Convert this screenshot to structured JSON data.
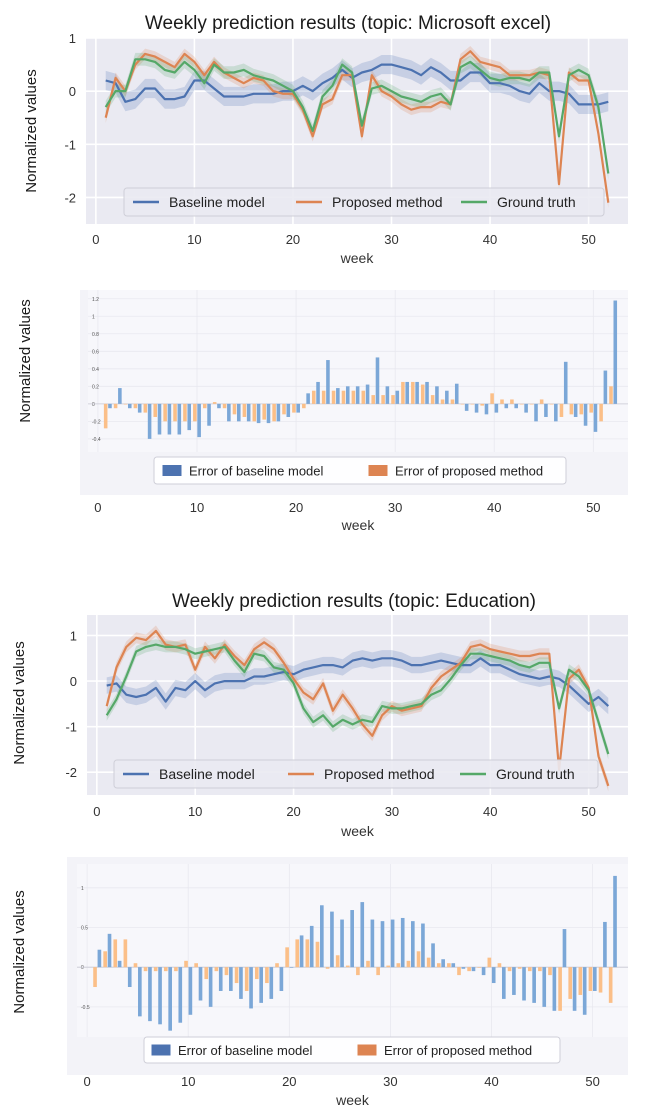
{
  "chart_data": [
    {
      "type": "line",
      "title": "Weekly prediction results (topic: Microsoft excel)",
      "xlabel": "week",
      "ylabel": "Normalized values",
      "xlim": [
        -1,
        54
      ],
      "ylim": [
        -2.5,
        1.0
      ],
      "xticks": [
        0,
        10,
        20,
        30,
        40,
        50
      ],
      "yticks": [
        1,
        0,
        -1,
        -2
      ],
      "grid": true,
      "legend": "bottom-center",
      "x": [
        1,
        2,
        3,
        4,
        5,
        6,
        7,
        8,
        9,
        10,
        11,
        12,
        13,
        14,
        15,
        16,
        17,
        18,
        19,
        20,
        21,
        22,
        23,
        24,
        25,
        26,
        27,
        28,
        29,
        30,
        31,
        32,
        33,
        34,
        35,
        36,
        37,
        38,
        39,
        40,
        41,
        42,
        43,
        44,
        45,
        46,
        47,
        48,
        49,
        50,
        51,
        52
      ],
      "series": [
        {
          "name": "Baseline model",
          "color": "#4c72b0",
          "band": 0.18,
          "values": [
            0.2,
            0.15,
            -0.2,
            -0.15,
            0.05,
            0.05,
            -0.15,
            -0.15,
            -0.1,
            0.2,
            0.2,
            0.05,
            -0.1,
            -0.1,
            -0.1,
            -0.05,
            -0.05,
            -0.05,
            0.0,
            0.0,
            0.1,
            0.0,
            0.15,
            0.25,
            0.4,
            0.25,
            0.35,
            0.4,
            0.5,
            0.5,
            0.45,
            0.4,
            0.3,
            0.45,
            0.35,
            0.2,
            0.2,
            0.35,
            0.35,
            0.15,
            0.15,
            0.1,
            0.0,
            -0.05,
            0.15,
            0.0,
            0.0,
            -0.05,
            -0.25,
            -0.25,
            -0.25,
            -0.2
          ]
        },
        {
          "name": "Proposed method",
          "color": "#dd8452",
          "band": 0.1,
          "values": [
            -0.5,
            0.25,
            0.0,
            0.5,
            0.7,
            0.65,
            0.55,
            0.45,
            0.7,
            0.55,
            0.3,
            0.55,
            0.35,
            0.25,
            0.15,
            0.25,
            0.2,
            0.0,
            -0.05,
            -0.05,
            -0.35,
            -0.85,
            -0.25,
            -0.15,
            0.3,
            0.3,
            -0.85,
            0.3,
            0.0,
            -0.1,
            -0.25,
            -0.35,
            -0.3,
            -0.3,
            -0.2,
            -0.25,
            0.6,
            0.75,
            0.55,
            0.5,
            0.45,
            0.3,
            0.3,
            0.3,
            0.35,
            0.3,
            -1.75,
            0.35,
            0.2,
            0.2,
            -0.8,
            -2.1
          ]
        },
        {
          "name": "Ground truth",
          "color": "#55a868",
          "band": 0.12,
          "values": [
            -0.3,
            0.0,
            0.0,
            0.6,
            0.6,
            0.55,
            0.4,
            0.35,
            0.55,
            0.4,
            0.15,
            0.5,
            0.35,
            0.35,
            0.4,
            0.3,
            0.25,
            0.2,
            0.1,
            0.0,
            -0.3,
            -0.75,
            -0.1,
            0.1,
            0.5,
            0.35,
            -0.65,
            0.05,
            0.1,
            0.0,
            -0.1,
            -0.15,
            -0.2,
            -0.1,
            -0.05,
            -0.25,
            0.45,
            0.55,
            0.4,
            0.25,
            0.2,
            0.25,
            0.25,
            0.2,
            0.35,
            0.35,
            -0.85,
            0.3,
            0.4,
            0.3,
            -0.3,
            -1.55
          ]
        }
      ]
    },
    {
      "type": "bar",
      "xlabel": "week",
      "ylabel": "Normalized values",
      "xlim": [
        -1,
        53.5
      ],
      "ylim": [
        -0.55,
        1.3
      ],
      "xticks": [
        0,
        10,
        20,
        30,
        40,
        50
      ],
      "yticks": [
        1.2,
        1,
        0.8,
        0.6,
        0.4,
        0.2,
        0,
        -0.2,
        -0.4
      ],
      "grid": true,
      "legend": "bottom-center",
      "x": [
        1,
        2,
        3,
        4,
        5,
        6,
        7,
        8,
        9,
        10,
        11,
        12,
        13,
        14,
        15,
        16,
        17,
        18,
        19,
        20,
        21,
        22,
        23,
        24,
        25,
        26,
        27,
        28,
        29,
        30,
        31,
        32,
        33,
        34,
        35,
        36,
        37,
        38,
        39,
        40,
        41,
        42,
        43,
        44,
        45,
        46,
        47,
        48,
        49,
        50,
        51,
        52
      ],
      "series": [
        {
          "name": "Error of baseline model",
          "color": "#4c72b0",
          "fill": "#7ba7d7",
          "values": [
            -0.05,
            0.18,
            -0.05,
            -0.1,
            -0.4,
            -0.35,
            -0.35,
            -0.35,
            -0.3,
            -0.38,
            -0.25,
            -0.05,
            -0.2,
            -0.2,
            -0.2,
            -0.22,
            -0.22,
            -0.2,
            -0.15,
            -0.1,
            0.12,
            0.25,
            0.5,
            0.18,
            0.2,
            0.2,
            0.22,
            0.53,
            0.2,
            0.15,
            0.25,
            0.25,
            0.25,
            0.2,
            0.15,
            0.23,
            -0.08,
            -0.1,
            -0.12,
            -0.1,
            -0.05,
            -0.05,
            -0.1,
            -0.2,
            -0.15,
            -0.2,
            0.48,
            -0.15,
            -0.25,
            -0.32,
            0.38,
            1.18
          ]
        },
        {
          "name": "Error of proposed method",
          "color": "#dd8452",
          "fill": "#fbbf88",
          "values": [
            -0.28,
            -0.05,
            0.0,
            -0.05,
            -0.1,
            -0.15,
            -0.2,
            -0.2,
            -0.2,
            -0.2,
            -0.05,
            0.02,
            -0.05,
            -0.12,
            -0.15,
            -0.2,
            -0.18,
            -0.2,
            -0.12,
            -0.1,
            -0.05,
            0.15,
            0.15,
            0.15,
            0.15,
            0.15,
            0.15,
            0.1,
            0.1,
            0.1,
            0.25,
            0.25,
            0.22,
            0.1,
            0.05,
            0.05,
            0.0,
            0.0,
            -0.02,
            0.12,
            0.05,
            0.05,
            0.0,
            0.0,
            0.05,
            0.0,
            -0.15,
            -0.12,
            -0.12,
            -0.1,
            -0.2,
            0.2
          ]
        }
      ]
    },
    {
      "type": "line",
      "title": "Weekly prediction results (topic: Education)",
      "xlabel": "week",
      "ylabel": "Normalized values",
      "xlim": [
        -1,
        54
      ],
      "ylim": [
        -2.5,
        1.45
      ],
      "xticks": [
        0,
        10,
        20,
        30,
        40,
        50
      ],
      "yticks": [
        1,
        0,
        -1,
        -2
      ],
      "grid": true,
      "legend": "bottom-center",
      "x": [
        1,
        2,
        3,
        4,
        5,
        6,
        7,
        8,
        9,
        10,
        11,
        12,
        13,
        14,
        15,
        16,
        17,
        18,
        19,
        20,
        21,
        22,
        23,
        24,
        25,
        26,
        27,
        28,
        29,
        30,
        31,
        32,
        33,
        34,
        35,
        36,
        37,
        38,
        39,
        40,
        41,
        42,
        43,
        44,
        45,
        46,
        47,
        48,
        49,
        50,
        51,
        52
      ],
      "series": [
        {
          "name": "Baseline model",
          "color": "#4c72b0",
          "band": 0.18,
          "values": [
            -0.1,
            -0.05,
            -0.3,
            -0.35,
            -0.3,
            -0.15,
            -0.45,
            -0.15,
            -0.2,
            0.0,
            -0.2,
            -0.05,
            0.0,
            0.0,
            0.0,
            0.1,
            0.1,
            0.15,
            0.2,
            0.15,
            0.25,
            0.3,
            0.35,
            0.35,
            0.3,
            0.45,
            0.5,
            0.45,
            0.5,
            0.5,
            0.45,
            0.35,
            0.35,
            0.4,
            0.45,
            0.4,
            0.35,
            0.35,
            0.5,
            0.35,
            0.35,
            0.25,
            0.15,
            0.1,
            0.05,
            0.1,
            0.05,
            -0.1,
            -0.3,
            -0.5,
            -0.35,
            -0.55
          ]
        },
        {
          "name": "Proposed method",
          "color": "#dd8452",
          "band": 0.12,
          "values": [
            -0.55,
            0.3,
            0.75,
            0.95,
            0.9,
            1.1,
            0.8,
            0.75,
            0.8,
            0.25,
            0.75,
            0.5,
            0.8,
            0.55,
            0.35,
            0.7,
            0.85,
            0.7,
            0.4,
            0.05,
            -0.25,
            -0.4,
            -0.05,
            -0.65,
            -0.3,
            -0.6,
            -0.95,
            -1.2,
            -0.75,
            -0.55,
            -0.65,
            -0.6,
            -0.55,
            -0.15,
            0.1,
            0.25,
            0.4,
            0.75,
            0.8,
            0.7,
            0.65,
            0.6,
            0.55,
            0.55,
            0.6,
            0.6,
            -1.95,
            0.05,
            0.25,
            -0.15,
            -1.65,
            -2.3
          ]
        },
        {
          "name": "Ground truth",
          "color": "#55a868",
          "band": 0.12,
          "values": [
            -0.75,
            -0.4,
            0.1,
            0.65,
            0.75,
            0.8,
            0.75,
            0.75,
            0.7,
            0.6,
            0.65,
            0.7,
            0.75,
            0.45,
            0.2,
            0.6,
            0.55,
            0.3,
            0.25,
            -0.05,
            -0.6,
            -0.9,
            -0.75,
            -1.0,
            -0.85,
            -0.95,
            -0.85,
            -0.9,
            -0.55,
            -0.6,
            -0.6,
            -0.55,
            -0.5,
            -0.3,
            -0.2,
            0.05,
            0.35,
            0.6,
            0.6,
            0.55,
            0.5,
            0.45,
            0.35,
            0.3,
            0.4,
            0.4,
            -0.6,
            0.25,
            0.1,
            -0.2,
            -0.9,
            -1.6
          ]
        }
      ]
    },
    {
      "type": "bar",
      "xlabel": "week",
      "ylabel": "Normalized values",
      "xlim": [
        -1,
        53.5
      ],
      "ylim": [
        -0.88,
        1.3
      ],
      "xticks": [
        0,
        10,
        20,
        30,
        40,
        50
      ],
      "yticks": [
        1,
        0.5,
        0,
        -0.5
      ],
      "grid": true,
      "legend": "bottom-center",
      "x": [
        1,
        2,
        3,
        4,
        5,
        6,
        7,
        8,
        9,
        10,
        11,
        12,
        13,
        14,
        15,
        16,
        17,
        18,
        19,
        20,
        21,
        22,
        23,
        24,
        25,
        26,
        27,
        28,
        29,
        30,
        31,
        32,
        33,
        34,
        35,
        36,
        37,
        38,
        39,
        40,
        41,
        42,
        43,
        44,
        45,
        46,
        47,
        48,
        49,
        50,
        51,
        52
      ],
      "series": [
        {
          "name": "Error of baseline model",
          "color": "#4c72b0",
          "fill": "#7ba7d7",
          "values": [
            0.22,
            0.42,
            0.08,
            -0.25,
            -0.62,
            -0.68,
            -0.72,
            -0.8,
            -0.7,
            -0.6,
            -0.42,
            -0.5,
            -0.3,
            -0.3,
            -0.4,
            -0.52,
            -0.45,
            -0.4,
            -0.3,
            0.0,
            0.4,
            0.52,
            0.78,
            0.7,
            0.6,
            0.72,
            0.82,
            0.6,
            0.58,
            0.6,
            0.62,
            0.58,
            0.55,
            0.3,
            0.1,
            0.05,
            -0.02,
            -0.05,
            -0.1,
            -0.2,
            -0.4,
            -0.35,
            -0.42,
            -0.45,
            -0.5,
            -0.55,
            0.48,
            -0.55,
            -0.6,
            -0.3,
            0.57,
            1.15
          ]
        },
        {
          "name": "Error of proposed method",
          "color": "#dd8452",
          "fill": "#fbbf88",
          "values": [
            -0.25,
            0.2,
            0.35,
            0.35,
            0.05,
            -0.05,
            -0.05,
            -0.05,
            -0.05,
            0.08,
            0.05,
            -0.15,
            -0.05,
            -0.1,
            -0.2,
            -0.3,
            -0.15,
            -0.2,
            0.05,
            0.25,
            0.35,
            0.35,
            0.32,
            -0.02,
            0.15,
            0.02,
            -0.1,
            0.08,
            -0.1,
            0.02,
            0.05,
            0.08,
            0.2,
            0.12,
            0.05,
            0.05,
            -0.1,
            -0.05,
            0.0,
            0.12,
            0.05,
            -0.05,
            -0.02,
            -0.05,
            -0.05,
            -0.1,
            -0.55,
            -0.4,
            -0.35,
            -0.3,
            -0.32,
            -0.45
          ]
        }
      ]
    }
  ]
}
